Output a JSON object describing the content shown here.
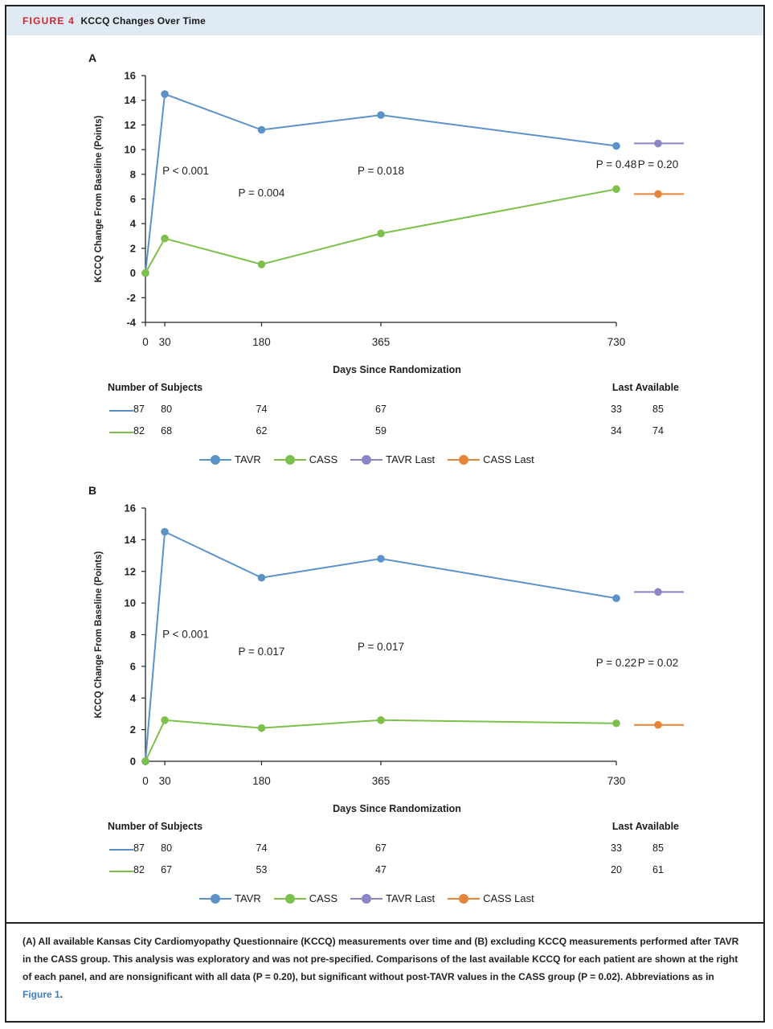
{
  "figure": {
    "label": "FIGURE 4",
    "title": "KCCQ Changes Over Time"
  },
  "colors": {
    "tavr": "#5b93c9",
    "cass": "#7cc04b",
    "tavr_last": "#8a86c6",
    "cass_last": "#e5853a"
  },
  "legend": [
    "TAVR",
    "CASS",
    "TAVR Last",
    "CASS Last"
  ],
  "chart_data": [
    {
      "type": "line",
      "panel": "A",
      "xlabel": "Days Since Randomization",
      "ylabel": "KCCQ Change From Baseline (Points)",
      "ylim": [
        -4,
        16
      ],
      "yticks": [
        "16",
        "14",
        "12",
        "10",
        "8",
        "6",
        "4",
        "2",
        "0",
        "-2",
        "-4"
      ],
      "x": [
        0,
        30,
        180,
        365,
        730
      ],
      "xticks": [
        "0",
        "30",
        "180",
        "365",
        "730"
      ],
      "series": [
        {
          "name": "TAVR",
          "values": [
            0,
            14.5,
            11.6,
            12.8,
            10.3
          ]
        },
        {
          "name": "CASS",
          "values": [
            0,
            2.8,
            0.7,
            3.2,
            6.8
          ]
        }
      ],
      "last_available": {
        "TAVR Last": 10.5,
        "CASS Last": 6.4
      },
      "annotations": [
        {
          "text": "P < 0.001",
          "x": 30,
          "y": 8.0
        },
        {
          "text": "P = 0.004",
          "x": 180,
          "y": 6.2
        },
        {
          "text": "P = 0.018",
          "x": 365,
          "y": 8.0
        },
        {
          "text": "P = 0.48",
          "x": 730,
          "y": 8.5
        },
        {
          "text": "P = 0.20",
          "x": "last",
          "y": 8.5
        }
      ],
      "subjects": {
        "header": "Number of Subjects",
        "last_header": "Last Available",
        "rows": [
          {
            "name": "TAVR",
            "values": [
              "87",
              "80",
              "74",
              "67",
              "33"
            ],
            "last": "85"
          },
          {
            "name": "CASS",
            "values": [
              "82",
              "68",
              "62",
              "59",
              "34"
            ],
            "last": "74"
          }
        ]
      }
    },
    {
      "type": "line",
      "panel": "B",
      "xlabel": "Days Since Randomization",
      "ylabel": "KCCQ Change From Baseline (Points)",
      "ylim": [
        0,
        16
      ],
      "yticks": [
        "16",
        "14",
        "12",
        "10",
        "8",
        "6",
        "4",
        "2",
        "0"
      ],
      "x": [
        0,
        30,
        180,
        365,
        730
      ],
      "xticks": [
        "0",
        "30",
        "180",
        "365",
        "730"
      ],
      "series": [
        {
          "name": "TAVR",
          "values": [
            0,
            14.5,
            11.6,
            12.8,
            10.3
          ]
        },
        {
          "name": "CASS",
          "values": [
            0,
            2.6,
            2.1,
            2.6,
            2.4
          ]
        }
      ],
      "last_available": {
        "TAVR Last": 10.7,
        "CASS Last": 2.3
      },
      "annotations": [
        {
          "text": "P < 0.001",
          "x": 30,
          "y": 7.8
        },
        {
          "text": "P = 0.017",
          "x": 180,
          "y": 6.7
        },
        {
          "text": "P = 0.017",
          "x": 365,
          "y": 7.0
        },
        {
          "text": "P = 0.22",
          "x": 730,
          "y": 6.0
        },
        {
          "text": "P = 0.02",
          "x": "last",
          "y": 6.0
        }
      ],
      "subjects": {
        "header": "Number of Subjects",
        "last_header": "Last Available",
        "rows": [
          {
            "name": "TAVR",
            "values": [
              "87",
              "80",
              "74",
              "67",
              "33"
            ],
            "last": "85"
          },
          {
            "name": "CASS",
            "values": [
              "82",
              "67",
              "53",
              "47",
              "20"
            ],
            "last": "61"
          }
        ]
      }
    }
  ],
  "caption": {
    "text": "(A) All available Kansas City Cardiomyopathy Questionnaire (KCCQ) measurements over time and (B) excluding KCCQ measurements performed after TAVR in the CASS group. This analysis was exploratory and was not pre-specified. Comparisons of the last available KCCQ for each patient are shown at the right of each panel, and are nonsignificant with all data (P = 0.20), but significant without post-TAVR values in the CASS group (P = 0.02). Abbreviations as in ",
    "link": "Figure 1",
    "end": "."
  }
}
